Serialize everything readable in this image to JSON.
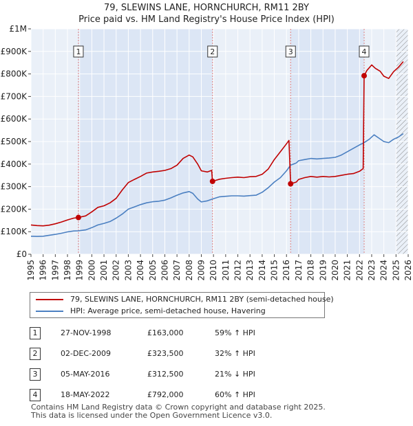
{
  "header": {
    "title_line1": "79, SLEWINS LANE, HORNCHURCH, RM11 2BY",
    "title_line2": "Price paid vs. HM Land Registry's House Price Index (HPI)"
  },
  "chart_data": {
    "type": "line",
    "title": "79, SLEWINS LANE, HORNCHURCH, RM11 2BY — Price paid vs. HM Land Registry's House Price Index (HPI)",
    "xlim": [
      1995,
      2026
    ],
    "ylim": [
      0,
      1000000
    ],
    "x_ticks": [
      1995,
      1996,
      1997,
      1998,
      1999,
      2000,
      2001,
      2002,
      2003,
      2004,
      2005,
      2006,
      2007,
      2008,
      2009,
      2010,
      2011,
      2012,
      2013,
      2014,
      2015,
      2016,
      2017,
      2018,
      2019,
      2020,
      2021,
      2022,
      2023,
      2024,
      2025,
      2026
    ],
    "y_ticks": [
      0,
      100000,
      200000,
      300000,
      400000,
      500000,
      600000,
      700000,
      800000,
      900000,
      1000000
    ],
    "y_tick_labels": [
      "£0",
      "£100K",
      "£200K",
      "£300K",
      "£400K",
      "£500K",
      "£600K",
      "£700K",
      "£800K",
      "£900K",
      "£1M"
    ],
    "colors": {
      "property": "#c00000",
      "hpi": "#4a7fc1",
      "band": "#dce6f5",
      "marker_line": "#e08080",
      "grid": "#ffffff",
      "plot_bg": "#eaf0f8"
    },
    "shaded_ranges": [
      [
        1998.9,
        2009.92
      ],
      [
        2016.34,
        2022.38
      ]
    ],
    "hatched_from": 2025.0,
    "series": [
      {
        "name": "79, SLEWINS LANE, HORNCHURCH, RM11 2BY (semi-detached house)",
        "color": "#c00000",
        "points": [
          [
            1995.0,
            130000
          ],
          [
            1995.5,
            127000
          ],
          [
            1996.0,
            126000
          ],
          [
            1996.5,
            129000
          ],
          [
            1997.0,
            135000
          ],
          [
            1997.5,
            143000
          ],
          [
            1998.0,
            152000
          ],
          [
            1998.5,
            160000
          ],
          [
            1998.9,
            163000
          ],
          [
            1999.5,
            170000
          ],
          [
            2000.0,
            188000
          ],
          [
            2000.5,
            208000
          ],
          [
            2001.0,
            215000
          ],
          [
            2001.5,
            228000
          ],
          [
            2002.0,
            248000
          ],
          [
            2002.5,
            285000
          ],
          [
            2003.0,
            318000
          ],
          [
            2003.5,
            332000
          ],
          [
            2004.0,
            345000
          ],
          [
            2004.5,
            360000
          ],
          [
            2005.0,
            365000
          ],
          [
            2005.5,
            368000
          ],
          [
            2006.0,
            372000
          ],
          [
            2006.5,
            380000
          ],
          [
            2007.0,
            395000
          ],
          [
            2007.5,
            425000
          ],
          [
            2008.0,
            440000
          ],
          [
            2008.3,
            432000
          ],
          [
            2008.7,
            400000
          ],
          [
            2009.0,
            370000
          ],
          [
            2009.5,
            365000
          ],
          [
            2009.85,
            372000
          ],
          [
            2009.92,
            323500
          ],
          [
            2010.5,
            333000
          ],
          [
            2011.0,
            337000
          ],
          [
            2011.5,
            340000
          ],
          [
            2012.0,
            342000
          ],
          [
            2012.5,
            340000
          ],
          [
            2013.0,
            344000
          ],
          [
            2013.5,
            345000
          ],
          [
            2014.0,
            355000
          ],
          [
            2014.5,
            378000
          ],
          [
            2015.0,
            420000
          ],
          [
            2015.5,
            455000
          ],
          [
            2016.0,
            490000
          ],
          [
            2016.2,
            505000
          ],
          [
            2016.34,
            312500
          ],
          [
            2016.8,
            320000
          ],
          [
            2017.0,
            332000
          ],
          [
            2017.5,
            340000
          ],
          [
            2018.0,
            345000
          ],
          [
            2018.5,
            342000
          ],
          [
            2019.0,
            345000
          ],
          [
            2019.5,
            343000
          ],
          [
            2020.0,
            345000
          ],
          [
            2020.5,
            350000
          ],
          [
            2021.0,
            355000
          ],
          [
            2021.5,
            358000
          ],
          [
            2022.0,
            368000
          ],
          [
            2022.3,
            380000
          ],
          [
            2022.38,
            792000
          ],
          [
            2022.6,
            815000
          ],
          [
            2023.0,
            840000
          ],
          [
            2023.3,
            825000
          ],
          [
            2023.7,
            812000
          ],
          [
            2024.0,
            790000
          ],
          [
            2024.4,
            780000
          ],
          [
            2024.8,
            810000
          ],
          [
            2025.2,
            830000
          ],
          [
            2025.6,
            855000
          ]
        ]
      },
      {
        "name": "HPI: Average price, semi-detached house, Havering",
        "color": "#4a7fc1",
        "points": [
          [
            1995.0,
            80000
          ],
          [
            1995.5,
            79000
          ],
          [
            1996.0,
            80000
          ],
          [
            1996.5,
            84000
          ],
          [
            1997.0,
            88000
          ],
          [
            1997.5,
            93000
          ],
          [
            1998.0,
            99000
          ],
          [
            1998.5,
            103000
          ],
          [
            1998.9,
            104000
          ],
          [
            1999.5,
            108000
          ],
          [
            2000.0,
            118000
          ],
          [
            2000.5,
            130000
          ],
          [
            2001.0,
            137000
          ],
          [
            2001.5,
            145000
          ],
          [
            2002.0,
            160000
          ],
          [
            2002.5,
            178000
          ],
          [
            2003.0,
            200000
          ],
          [
            2003.5,
            210000
          ],
          [
            2004.0,
            220000
          ],
          [
            2004.5,
            228000
          ],
          [
            2005.0,
            233000
          ],
          [
            2005.5,
            235000
          ],
          [
            2006.0,
            240000
          ],
          [
            2006.5,
            250000
          ],
          [
            2007.0,
            262000
          ],
          [
            2007.5,
            272000
          ],
          [
            2008.0,
            278000
          ],
          [
            2008.3,
            270000
          ],
          [
            2008.7,
            245000
          ],
          [
            2009.0,
            232000
          ],
          [
            2009.5,
            237000
          ],
          [
            2009.92,
            245000
          ],
          [
            2010.5,
            255000
          ],
          [
            2011.0,
            257000
          ],
          [
            2011.5,
            259000
          ],
          [
            2012.0,
            259000
          ],
          [
            2012.5,
            258000
          ],
          [
            2013.0,
            260000
          ],
          [
            2013.5,
            262000
          ],
          [
            2014.0,
            275000
          ],
          [
            2014.5,
            295000
          ],
          [
            2015.0,
            320000
          ],
          [
            2015.5,
            340000
          ],
          [
            2016.0,
            370000
          ],
          [
            2016.34,
            395000
          ],
          [
            2016.8,
            405000
          ],
          [
            2017.0,
            415000
          ],
          [
            2017.5,
            420000
          ],
          [
            2018.0,
            425000
          ],
          [
            2018.5,
            423000
          ],
          [
            2019.0,
            425000
          ],
          [
            2019.5,
            427000
          ],
          [
            2020.0,
            430000
          ],
          [
            2020.5,
            440000
          ],
          [
            2021.0,
            455000
          ],
          [
            2021.5,
            470000
          ],
          [
            2022.0,
            485000
          ],
          [
            2022.38,
            495000
          ],
          [
            2022.8,
            510000
          ],
          [
            2023.2,
            530000
          ],
          [
            2023.6,
            515000
          ],
          [
            2024.0,
            500000
          ],
          [
            2024.4,
            495000
          ],
          [
            2024.8,
            510000
          ],
          [
            2025.2,
            520000
          ],
          [
            2025.6,
            535000
          ]
        ]
      }
    ],
    "sale_markers": [
      {
        "label": "1",
        "x": 1998.9,
        "value": 163000
      },
      {
        "label": "2",
        "x": 2009.92,
        "value": 323500
      },
      {
        "label": "3",
        "x": 2016.34,
        "value": 312500
      },
      {
        "label": "4",
        "x": 2022.38,
        "value": 792000
      }
    ]
  },
  "legend": {
    "property_label": "79, SLEWINS LANE, HORNCHURCH, RM11 2BY (semi-detached house)",
    "hpi_label": "HPI: Average price, semi-detached house, Havering"
  },
  "sales": [
    {
      "num": "1",
      "date": "27-NOV-1998",
      "price": "£163,000",
      "hpi": "59% ↑ HPI"
    },
    {
      "num": "2",
      "date": "02-DEC-2009",
      "price": "£323,500",
      "hpi": "32% ↑ HPI"
    },
    {
      "num": "3",
      "date": "05-MAY-2016",
      "price": "£312,500",
      "hpi": "21% ↓ HPI"
    },
    {
      "num": "4",
      "date": "18-MAY-2022",
      "price": "£792,000",
      "hpi": "60% ↑ HPI"
    }
  ],
  "footer": {
    "line1": "Contains HM Land Registry data © Crown copyright and database right 2025.",
    "line2": "This data is licensed under the Open Government Licence v3.0."
  }
}
